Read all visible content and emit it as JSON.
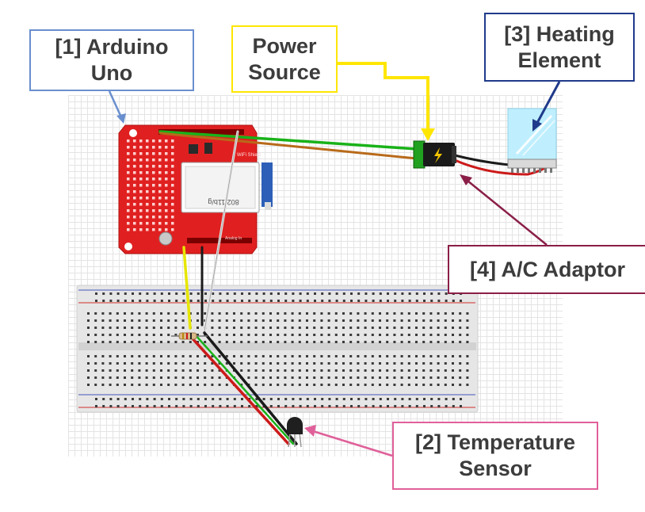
{
  "labels": {
    "arduino": "[1] Arduino\nUno",
    "power": "Power\nSource",
    "heating": "[3] Heating\nElement",
    "adaptor": "[4] A/C Adaptor",
    "temperature": "[2] Temperature\nSensor"
  },
  "shield_text": {
    "module": "802.11b/g",
    "wifi_shield": "WiFi Shield",
    "analog_in": "Analog In"
  },
  "colors": {
    "arduino": "#6a8fcf",
    "power": "#ffe600",
    "heating": "#1f3a8a",
    "adaptor": "#8a1e47",
    "temperature": "#e0609a",
    "board_red": "#e02020",
    "wire_green": "#19b219",
    "wire_orange": "#b86a1a",
    "wire_red": "#cc1a1a",
    "wire_black": "#1a1a1a",
    "wire_yellow": "#e6e600",
    "wire_white": "#e6e6e6"
  },
  "icons": [
    "lightning-icon"
  ]
}
